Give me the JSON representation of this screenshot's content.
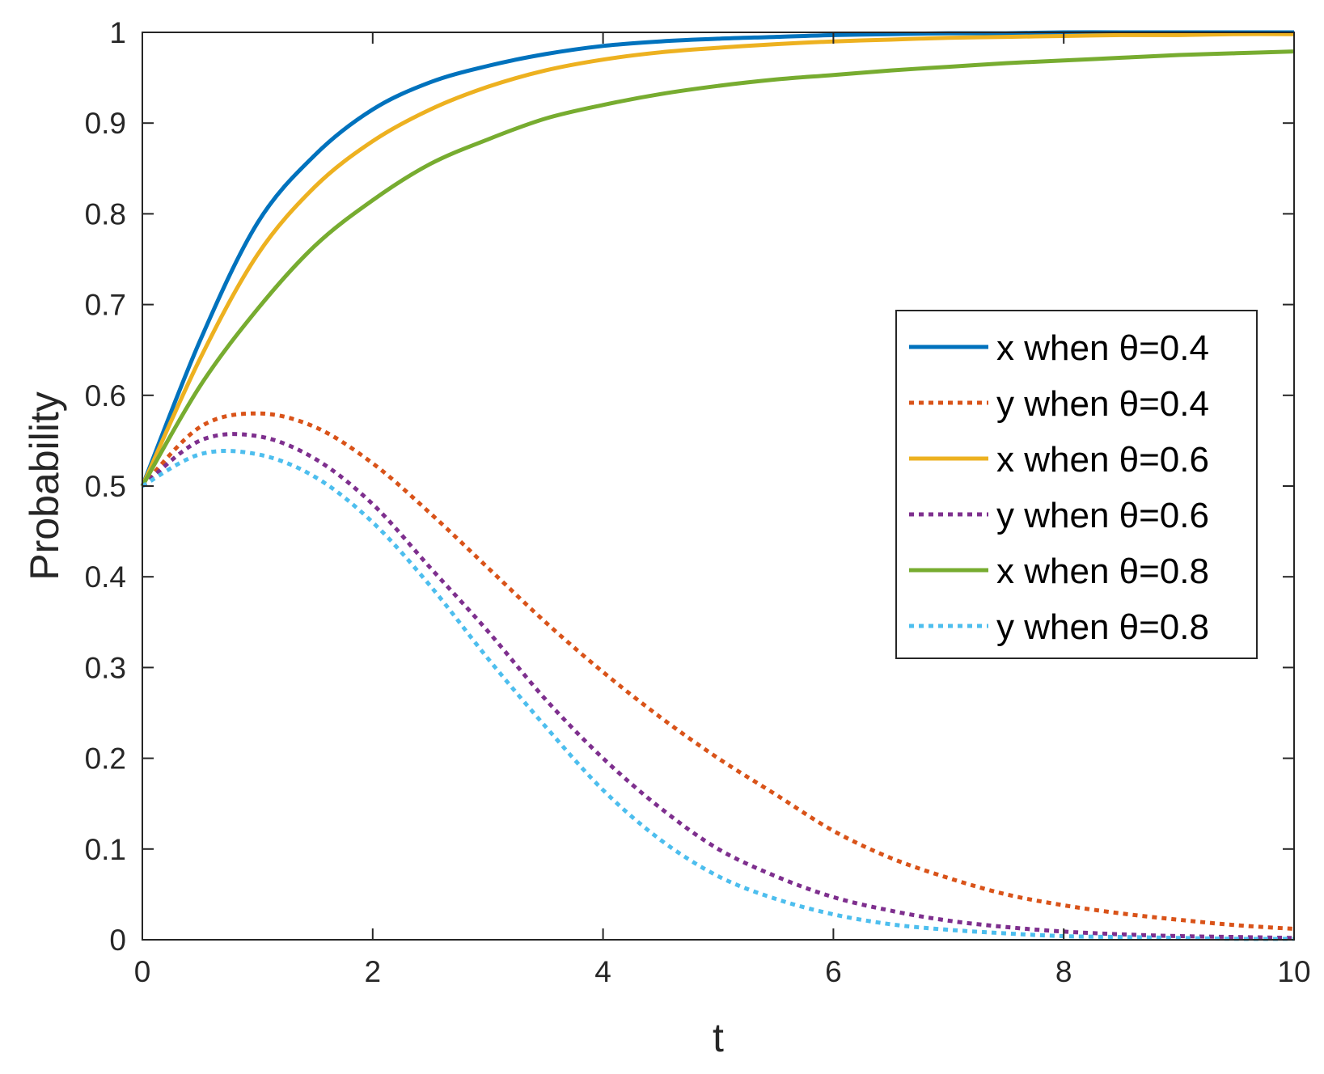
{
  "chart_data": {
    "type": "line",
    "xlabel": "t",
    "ylabel": "Probability",
    "xlim": [
      0,
      10
    ],
    "ylim": [
      0,
      1
    ],
    "xticks": [
      "0",
      "2",
      "4",
      "6",
      "8",
      "10"
    ],
    "yticks": [
      "0",
      "0.1",
      "0.2",
      "0.3",
      "0.4",
      "0.5",
      "0.6",
      "0.7",
      "0.8",
      "0.9",
      "1"
    ],
    "grid": false,
    "legend_position": "right-middle",
    "x": [
      0,
      0.5,
      1,
      1.5,
      2,
      2.5,
      3,
      3.5,
      4,
      4.5,
      5,
      5.5,
      6,
      6.5,
      7,
      7.5,
      8,
      8.5,
      9,
      9.5,
      10
    ],
    "series": [
      {
        "name": "x when θ=0.4",
        "color": "#0072BD",
        "style": "solid",
        "values": [
          0.5,
          0.66,
          0.79,
          0.865,
          0.915,
          0.945,
          0.963,
          0.976,
          0.985,
          0.99,
          0.993,
          0.995,
          0.997,
          0.998,
          0.999,
          0.999,
          1.0,
          1.0,
          1.0,
          1.0,
          1.0
        ]
      },
      {
        "name": "y when θ=0.4",
        "color": "#D95319",
        "style": "dotted",
        "values": [
          0.5,
          0.565,
          0.58,
          0.565,
          0.525,
          0.47,
          0.41,
          0.35,
          0.295,
          0.245,
          0.2,
          0.16,
          0.12,
          0.09,
          0.068,
          0.05,
          0.038,
          0.029,
          0.022,
          0.016,
          0.012
        ]
      },
      {
        "name": "x when θ=0.6",
        "color": "#EDB120",
        "style": "solid",
        "values": [
          0.5,
          0.64,
          0.755,
          0.83,
          0.88,
          0.915,
          0.94,
          0.958,
          0.97,
          0.978,
          0.983,
          0.987,
          0.99,
          0.992,
          0.994,
          0.995,
          0.996,
          0.997,
          0.997,
          0.998,
          0.998
        ]
      },
      {
        "name": "y when θ=0.6",
        "color": "#7E2F8E",
        "style": "dotted",
        "values": [
          0.5,
          0.55,
          0.555,
          0.53,
          0.48,
          0.41,
          0.34,
          0.265,
          0.2,
          0.145,
          0.1,
          0.07,
          0.047,
          0.032,
          0.021,
          0.014,
          0.009,
          0.006,
          0.004,
          0.003,
          0.002
        ]
      },
      {
        "name": "x when θ=0.8",
        "color": "#77AC30",
        "style": "solid",
        "values": [
          0.5,
          0.61,
          0.695,
          0.765,
          0.815,
          0.855,
          0.882,
          0.905,
          0.92,
          0.932,
          0.941,
          0.948,
          0.953,
          0.958,
          0.962,
          0.966,
          0.969,
          0.972,
          0.975,
          0.977,
          0.979
        ]
      },
      {
        "name": "y when θ=0.8",
        "color": "#4DBEEE",
        "style": "dotted",
        "values": [
          0.5,
          0.535,
          0.535,
          0.51,
          0.46,
          0.39,
          0.31,
          0.235,
          0.165,
          0.11,
          0.07,
          0.045,
          0.028,
          0.017,
          0.011,
          0.007,
          0.004,
          0.003,
          0.002,
          0.001,
          0.001
        ]
      }
    ]
  }
}
